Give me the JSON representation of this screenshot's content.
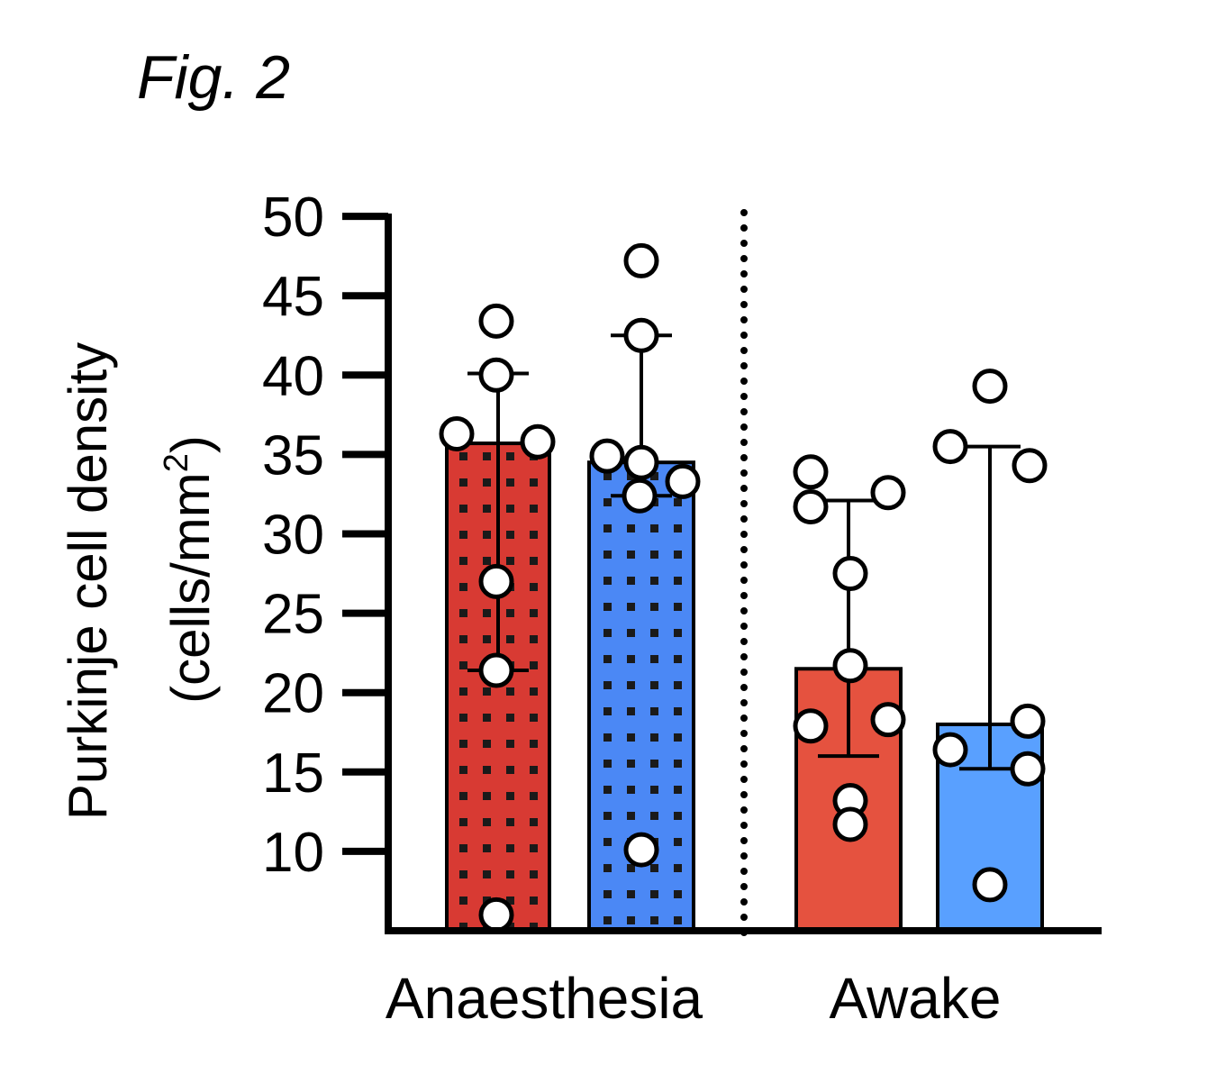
{
  "figure_label": "Fig. 2",
  "colors": {
    "anaesthesia_red": "#d83a33",
    "anaesthesia_blue": "#4b88f5",
    "awake_red": "#e5523f",
    "awake_blue": "#59a0ff",
    "dot_pattern": "#1a1a1a",
    "axis": "#000000"
  },
  "chart_data": {
    "type": "bar",
    "title": "",
    "ylabel_line1": "Purkinje cell density",
    "ylabel_line2_prefix": "(cells/mm",
    "ylabel_line2_sup": "2",
    "ylabel_line2_suffix": ")",
    "ylim": [
      5,
      50
    ],
    "yticks": [
      10,
      15,
      20,
      25,
      30,
      35,
      40,
      45,
      50
    ],
    "groups": [
      "Anaesthesia",
      "Awake"
    ],
    "grid": false,
    "separator": "dotted vertical line between groups",
    "bars": [
      {
        "group": "Anaesthesia",
        "color": "red",
        "pattern": "dotted",
        "mean": 35.7,
        "err_low": 21.4,
        "err_high": 40.1,
        "points": [
          43.4,
          40.0,
          36.3,
          35.8,
          27.0,
          21.4,
          6.0
        ]
      },
      {
        "group": "Anaesthesia",
        "color": "blue",
        "pattern": "dotted",
        "mean": 34.5,
        "err_low": 32.4,
        "err_high": 42.5,
        "points": [
          47.2,
          42.5,
          34.9,
          34.5,
          33.3,
          32.4,
          10.1
        ]
      },
      {
        "group": "Awake",
        "color": "red",
        "pattern": "solid",
        "mean": 21.5,
        "err_low": 16.0,
        "err_high": 32.1,
        "points": [
          33.9,
          32.6,
          31.7,
          27.5,
          21.7,
          18.3,
          17.9,
          13.2,
          11.7
        ]
      },
      {
        "group": "Awake",
        "color": "blue",
        "pattern": "solid",
        "mean": 18.0,
        "err_low": 15.2,
        "err_high": 35.5,
        "points": [
          39.3,
          35.5,
          34.3,
          18.2,
          16.4,
          15.2,
          7.9
        ]
      }
    ]
  }
}
